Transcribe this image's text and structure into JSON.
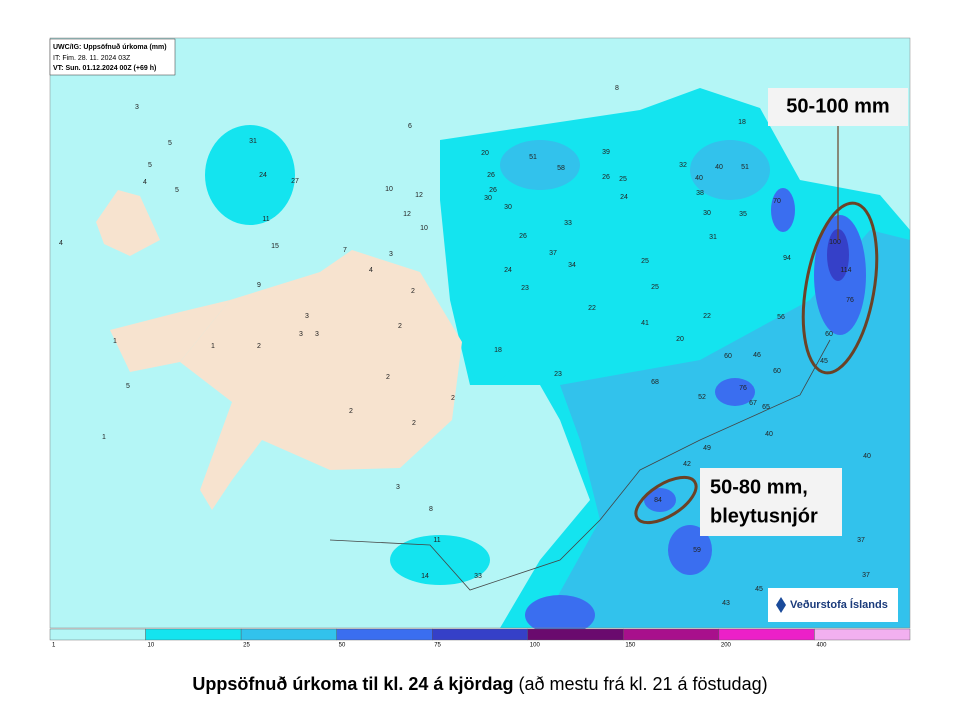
{
  "header": {
    "line1": "UWC/IG: Uppsöfnuð úrkoma (mm)",
    "line2": "IT: Fim. 28. 11. 2024 03Z",
    "line3": "VT: Sun. 01.12.2024 00Z (+69 h)"
  },
  "callouts": {
    "east": "50-100 mm",
    "south_line1": "50-80 mm,",
    "south_line2": "bleytusnjór"
  },
  "logo": "Veðurstofa Íslands",
  "caption": {
    "bold": "Uppsöfnuð úrkoma til kl. 24 á kjördag",
    "rest": " (að mestu frá kl. 21 á föstudag)"
  },
  "colorbar": {
    "ticks": [
      1,
      10,
      25,
      50,
      75,
      100,
      150,
      200,
      400
    ],
    "colors": [
      "#b4f6f6",
      "#14e4ef",
      "#32c2ec",
      "#3a6ef0",
      "#3540c8",
      "#6a0a6e",
      "#a8108c",
      "#ec20c8",
      "#f2b0f0"
    ]
  },
  "map_labels": [
    3,
    6,
    8,
    18,
    31,
    5,
    5,
    4,
    5,
    24,
    27,
    4,
    11,
    15,
    10,
    12,
    12,
    10,
    7,
    3,
    4,
    9,
    2,
    3,
    3,
    3,
    2,
    1,
    1,
    2,
    5,
    1,
    2,
    2,
    2,
    2,
    3,
    8,
    11,
    14,
    33,
    20,
    26,
    26,
    30,
    30,
    26,
    24,
    23,
    37,
    34,
    51,
    58,
    39,
    26,
    25,
    24,
    33,
    25,
    25,
    22,
    41,
    20,
    18,
    23,
    32,
    40,
    51,
    40,
    38,
    30,
    35,
    31,
    70,
    100,
    114,
    94,
    76,
    56,
    60,
    45,
    22,
    46,
    60,
    60,
    68,
    52,
    76,
    67,
    65,
    40,
    49,
    42,
    40,
    84,
    59,
    37,
    37,
    45,
    43
  ]
}
